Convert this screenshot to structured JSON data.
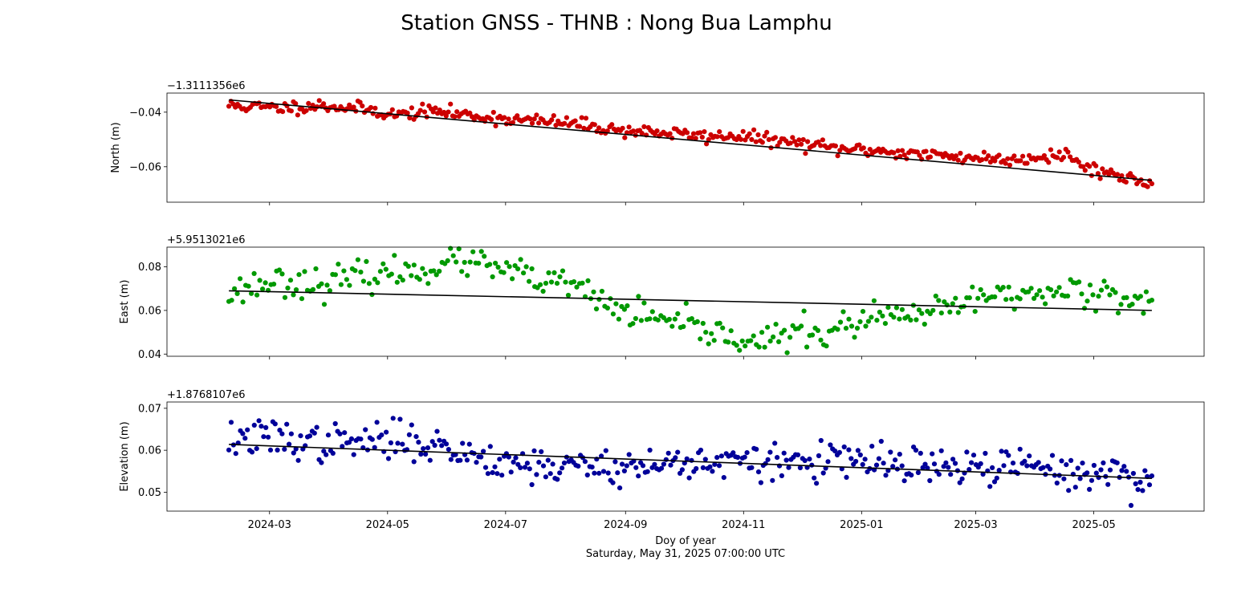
{
  "figure": {
    "title": "Station GNSS - THNB : Nong Bua Lamphu",
    "xlabel": "Doy of year",
    "xsublabel": "Saturday, May 31, 2025 07:00:00 UTC"
  },
  "chart_data": [
    {
      "type": "scatter",
      "ylabel": "North (m)",
      "offset_label": "−1.3111356e6",
      "color": "#cc0000",
      "xlim": [
        "2024-01-08",
        "2025-06-27"
      ],
      "ylim": [
        -0.073,
        -0.033
      ],
      "yticks": [
        -0.04,
        -0.06
      ],
      "ytick_labels": [
        "−0.04",
        "−0.06"
      ],
      "xticks": [
        "2024-03-01",
        "2024-05-01",
        "2024-07-01",
        "2024-09-01",
        "2024-11-01",
        "2025-01-01",
        "2025-03-01",
        "2025-05-01"
      ],
      "xtick_labels": [
        "2024-03",
        "2024-05",
        "2024-07",
        "2024-09",
        "2024-11",
        "2025-01",
        "2025-03",
        "2025-05"
      ],
      "x_start": "2024-02-09",
      "x_end": "2025-05-31",
      "trend": [
        [
          "2024-02-09",
          -0.0355
        ],
        [
          "2025-05-31",
          -0.065
        ]
      ],
      "anchors": [
        [
          0,
          -0.0375
        ],
        [
          0.05,
          -0.0385
        ],
        [
          0.1,
          -0.0375
        ],
        [
          0.15,
          -0.039
        ],
        [
          0.18,
          -0.041
        ],
        [
          0.22,
          -0.0395
        ],
        [
          0.27,
          -0.0415
        ],
        [
          0.32,
          -0.043
        ],
        [
          0.37,
          -0.044
        ],
        [
          0.42,
          -0.0465
        ],
        [
          0.47,
          -0.0475
        ],
        [
          0.52,
          -0.049
        ],
        [
          0.55,
          -0.0485
        ],
        [
          0.58,
          -0.05
        ],
        [
          0.62,
          -0.0515
        ],
        [
          0.66,
          -0.0535
        ],
        [
          0.7,
          -0.054
        ],
        [
          0.75,
          -0.0555
        ],
        [
          0.8,
          -0.0565
        ],
        [
          0.85,
          -0.0575
        ],
        [
          0.88,
          -0.056
        ],
        [
          0.91,
          -0.0555
        ],
        [
          0.92,
          -0.059
        ],
        [
          0.96,
          -0.063
        ],
        [
          1.0,
          -0.066
        ]
      ],
      "noise": 0.0012,
      "points": 430,
      "seed": 11
    },
    {
      "type": "scatter",
      "ylabel": "East (m)",
      "offset_label": "+5.9513021e6",
      "color": "#009900",
      "xlim": [
        "2024-01-08",
        "2025-06-27"
      ],
      "ylim": [
        0.039,
        0.089
      ],
      "yticks": [
        0.04,
        0.06,
        0.08
      ],
      "ytick_labels": [
        "0.04",
        "0.06",
        "0.08"
      ],
      "xticks": [
        "2024-03-01",
        "2024-05-01",
        "2024-07-01",
        "2024-09-01",
        "2024-11-01",
        "2025-01-01",
        "2025-03-01",
        "2025-05-01"
      ],
      "xtick_labels": [
        "2024-03",
        "2024-05",
        "2024-07",
        "2024-09",
        "2024-11",
        "2025-01",
        "2025-03",
        "2025-05"
      ],
      "x_start": "2024-02-09",
      "x_end": "2025-05-31",
      "trend": [
        [
          "2024-02-09",
          0.069
        ],
        [
          "2025-05-31",
          0.06
        ]
      ],
      "anchors": [
        [
          0,
          0.068
        ],
        [
          0.05,
          0.074
        ],
        [
          0.1,
          0.072
        ],
        [
          0.15,
          0.076
        ],
        [
          0.2,
          0.078
        ],
        [
          0.25,
          0.083
        ],
        [
          0.3,
          0.078
        ],
        [
          0.35,
          0.072
        ],
        [
          0.38,
          0.071
        ],
        [
          0.4,
          0.064
        ],
        [
          0.44,
          0.058
        ],
        [
          0.48,
          0.054
        ],
        [
          0.52,
          0.05
        ],
        [
          0.56,
          0.047
        ],
        [
          0.59,
          0.046
        ],
        [
          0.62,
          0.051
        ],
        [
          0.65,
          0.049
        ],
        [
          0.68,
          0.055
        ],
        [
          0.72,
          0.057
        ],
        [
          0.76,
          0.058
        ],
        [
          0.8,
          0.064
        ],
        [
          0.84,
          0.068
        ],
        [
          0.88,
          0.067
        ],
        [
          0.92,
          0.07
        ],
        [
          0.96,
          0.068
        ],
        [
          1.0,
          0.064
        ]
      ],
      "noise": 0.0035,
      "points": 330,
      "seed": 23
    },
    {
      "type": "scatter",
      "ylabel": "Elevation (m)",
      "offset_label": "+1.8768107e6",
      "color": "#000099",
      "xlim": [
        "2024-01-08",
        "2025-06-27"
      ],
      "ylim": [
        0.0455,
        0.0715
      ],
      "yticks": [
        0.05,
        0.06,
        0.07
      ],
      "ytick_labels": [
        "0.05",
        "0.06",
        "0.07"
      ],
      "xticks": [
        "2024-03-01",
        "2024-05-01",
        "2024-07-01",
        "2024-09-01",
        "2024-11-01",
        "2025-01-01",
        "2025-03-01",
        "2025-05-01"
      ],
      "xtick_labels": [
        "2024-03",
        "2024-05",
        "2024-07",
        "2024-09",
        "2024-11",
        "2025-01",
        "2025-03",
        "2025-05"
      ],
      "x_start": "2024-02-09",
      "x_end": "2025-05-31",
      "trend": [
        [
          "2024-02-09",
          0.0614
        ],
        [
          "2025-05-31",
          0.0533
        ]
      ],
      "anchors": [
        [
          0,
          0.0625
        ],
        [
          0.05,
          0.063
        ],
        [
          0.1,
          0.0615
        ],
        [
          0.15,
          0.062
        ],
        [
          0.2,
          0.0625
        ],
        [
          0.25,
          0.0595
        ],
        [
          0.3,
          0.0575
        ],
        [
          0.35,
          0.056
        ],
        [
          0.4,
          0.0565
        ],
        [
          0.45,
          0.056
        ],
        [
          0.5,
          0.0575
        ],
        [
          0.55,
          0.057
        ],
        [
          0.6,
          0.057
        ],
        [
          0.65,
          0.0575
        ],
        [
          0.7,
          0.057
        ],
        [
          0.75,
          0.056
        ],
        [
          0.8,
          0.0555
        ],
        [
          0.85,
          0.0565
        ],
        [
          0.9,
          0.055
        ],
        [
          0.95,
          0.0545
        ],
        [
          1.0,
          0.053
        ]
      ],
      "noise": 0.0022,
      "points": 400,
      "seed": 37
    }
  ]
}
